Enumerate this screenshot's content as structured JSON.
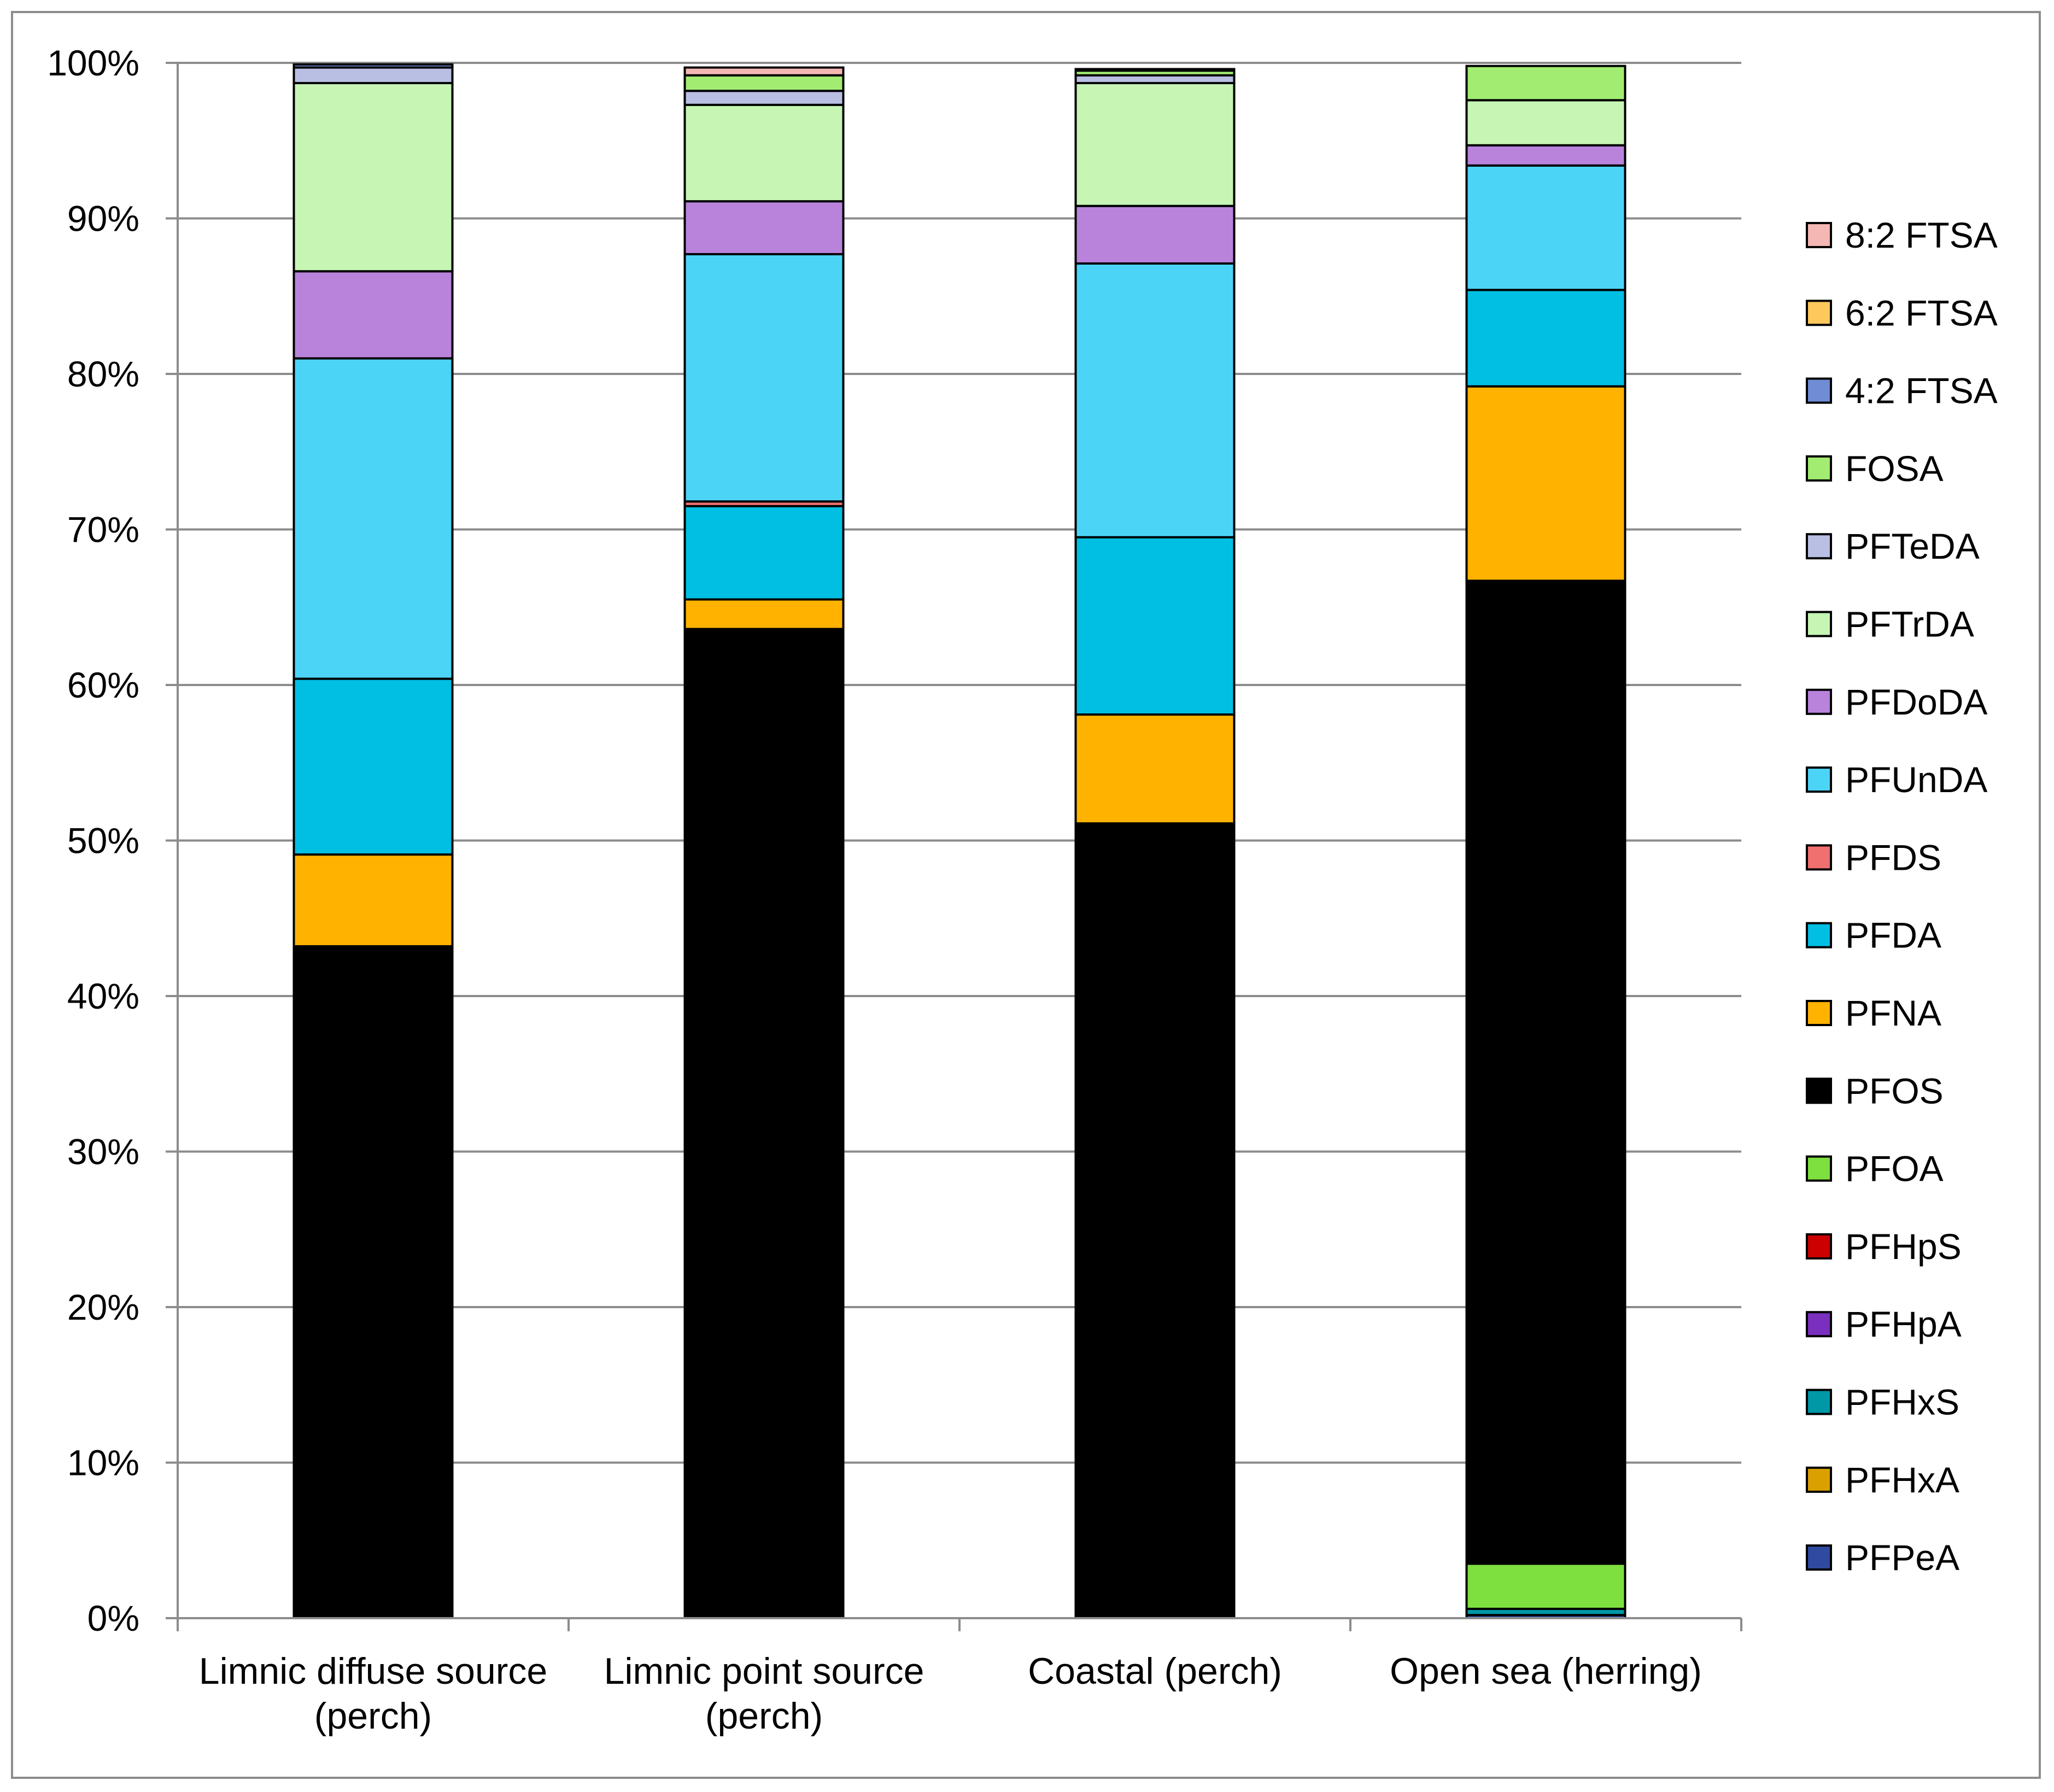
{
  "chart_data": {
    "type": "bar",
    "stacked": true,
    "percent_stacked": true,
    "categories": [
      [
        "Limnic diffuse source",
        "(perch)"
      ],
      [
        "Limnic point source",
        "(perch)"
      ],
      [
        "Coastal (perch)"
      ],
      [
        "Open sea (herring)"
      ]
    ],
    "y_tick_labels": [
      "0%",
      "10%",
      "20%",
      "30%",
      "40%",
      "50%",
      "60%",
      "70%",
      "80%",
      "90%",
      "100%"
    ],
    "ylim": [
      0,
      100
    ],
    "grid": true,
    "legend_position": "right",
    "series": [
      {
        "name": "PFPeA",
        "color": "#2f4aa0",
        "values": [
          0,
          0,
          0,
          0.2
        ]
      },
      {
        "name": "PFHxA",
        "color": "#d9a000",
        "values": [
          0,
          0,
          0,
          0
        ]
      },
      {
        "name": "PFHxS",
        "color": "#0097a7",
        "values": [
          0,
          0,
          0,
          0.4
        ]
      },
      {
        "name": "PFHpA",
        "color": "#7b2fbe",
        "values": [
          0,
          0,
          0,
          0
        ]
      },
      {
        "name": "PFHpS",
        "color": "#cc0000",
        "values": [
          0,
          0,
          0,
          0
        ]
      },
      {
        "name": "PFOA",
        "color": "#7ee03e",
        "values": [
          0,
          0,
          0,
          2.9
        ]
      },
      {
        "name": "PFOS",
        "color": "#000000",
        "values": [
          43.2,
          63.6,
          51.1,
          63.2
        ]
      },
      {
        "name": "PFNA",
        "color": "#ffb300",
        "values": [
          5.9,
          1.9,
          7.0,
          12.5
        ]
      },
      {
        "name": "PFDA",
        "color": "#00bfe3",
        "values": [
          11.3,
          6.0,
          11.4,
          6.2
        ]
      },
      {
        "name": "PFDS",
        "color": "#f07070",
        "values": [
          0,
          0.3,
          0,
          0
        ]
      },
      {
        "name": "PFUnDA",
        "color": "#4cd4f7",
        "values": [
          20.6,
          15.9,
          17.6,
          8.0
        ]
      },
      {
        "name": "PFDoDA",
        "color": "#b983dc",
        "values": [
          5.6,
          3.4,
          3.7,
          1.3
        ]
      },
      {
        "name": "PFTrDA",
        "color": "#c6f5b4",
        "values": [
          12.1,
          6.2,
          7.9,
          2.9
        ]
      },
      {
        "name": "PFTeDA",
        "color": "#b8bfe3",
        "values": [
          1.0,
          0.9,
          0.5,
          0
        ]
      },
      {
        "name": "FOSA",
        "color": "#a2ec71",
        "values": [
          0,
          1.0,
          0.3,
          2.2
        ]
      },
      {
        "name": "4:2 FTSA",
        "color": "#6f8cd4",
        "values": [
          0.2,
          0,
          0,
          0
        ]
      },
      {
        "name": "6:2 FTSA",
        "color": "#ffc85c",
        "values": [
          0,
          0,
          0,
          0
        ]
      },
      {
        "name": "8:2 FTSA",
        "color": "#f4b7b3",
        "values": [
          0,
          0.5,
          0.1,
          0
        ]
      }
    ]
  }
}
